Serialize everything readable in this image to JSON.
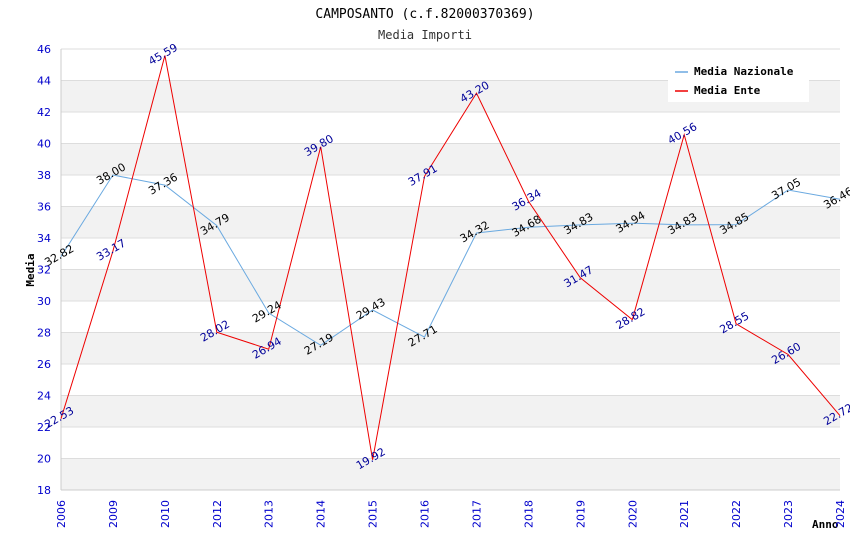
{
  "chart_data": {
    "type": "line",
    "title": "CAMPOSANTO (c.f.82000370369)",
    "subtitle": "Media Importi",
    "xlabel": "Anno",
    "ylabel": "Media",
    "ylim": [
      18,
      46
    ],
    "yticks": [
      "18",
      "20",
      "22",
      "24",
      "26",
      "28",
      "30",
      "32",
      "34",
      "36",
      "38",
      "40",
      "42",
      "44",
      "46"
    ],
    "categories": [
      "2006",
      "2009",
      "2010",
      "2012",
      "2013",
      "2014",
      "2015",
      "2016",
      "2017",
      "2018",
      "2019",
      "2020",
      "2021",
      "2022",
      "2023",
      "2024"
    ],
    "series": [
      {
        "name": "Media Nazionale",
        "color": "#6aa9e0",
        "label_color": "#000000",
        "values": [
          32.82,
          38.0,
          37.36,
          34.79,
          29.24,
          27.19,
          29.43,
          27.71,
          34.32,
          34.68,
          34.83,
          34.94,
          34.83,
          34.85,
          37.05,
          36.46
        ],
        "labels": [
          "32.82",
          "38.00",
          "37.36",
          "34.79",
          "29.24",
          "27.19",
          "29.43",
          "27.71",
          "34.32",
          "34.68",
          "34.83",
          "34.94",
          "34.83",
          "34.85",
          "37.05",
          "36.46"
        ]
      },
      {
        "name": "Media Ente",
        "color": "#ee0000",
        "label_color": "#000099",
        "values": [
          22.53,
          33.17,
          45.59,
          28.02,
          26.94,
          39.8,
          19.92,
          37.91,
          43.2,
          36.34,
          31.47,
          28.82,
          40.56,
          28.55,
          26.6,
          22.72
        ],
        "labels": [
          "22.53",
          "33.17",
          "45.59",
          "28.02",
          "26.94",
          "39.80",
          "19.92",
          "37.91",
          "43.20",
          "36.34",
          "31.47",
          "28.82",
          "40.56",
          "28.55",
          "26.60",
          "22.72"
        ]
      }
    ],
    "legend_position": "top-right",
    "grid": true
  }
}
